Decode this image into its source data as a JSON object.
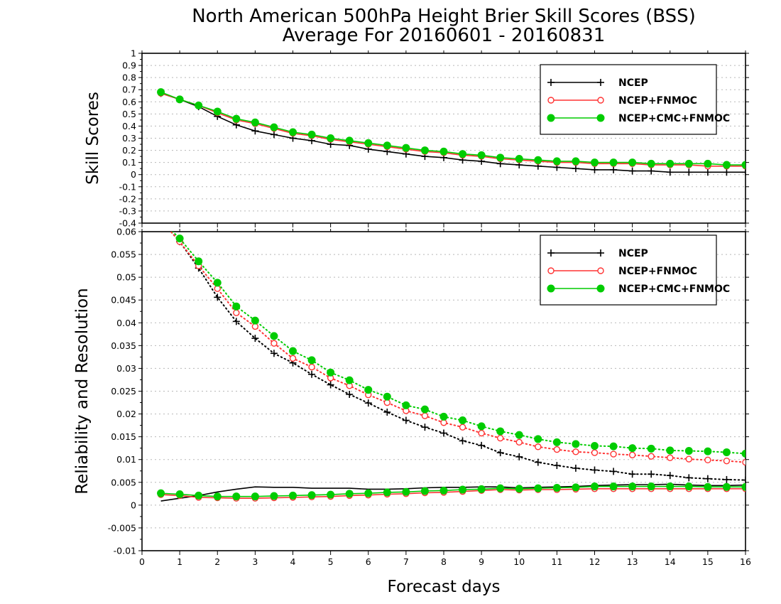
{
  "figure": {
    "title_line1": "North American 500hPa Height Brier Skill Scores (BSS)",
    "title_line2": "Average For 20160601 - 20160831",
    "xlabel": "Forecast days",
    "x_ticks": [
      "0",
      "1",
      "2",
      "3",
      "4",
      "5",
      "6",
      "7",
      "8",
      "9",
      "10",
      "11",
      "12",
      "13",
      "14",
      "15",
      "16"
    ]
  },
  "colors": {
    "NCEP": "#000000",
    "NCEP+FNMOC": "#ff3333",
    "NCEP+CMC+FNMOC": "#00cc00"
  },
  "chart_data": [
    {
      "type": "line",
      "ylabel": "Skill Scores",
      "xlim": [
        0,
        16
      ],
      "ylim": [
        -0.4,
        1
      ],
      "y_ticks": [
        "-0.4",
        "-0.3",
        "-0.2",
        "-0.1",
        "0",
        "0.1",
        "0.2",
        "0.3",
        "0.4",
        "0.5",
        "0.6",
        "0.7",
        "0.8",
        "0.9",
        "1"
      ],
      "grid": true,
      "legend": "top-right",
      "legend_entries": [
        "NCEP",
        "NCEP+FNMOC",
        "NCEP+CMC+FNMOC"
      ],
      "x": [
        0.5,
        1,
        1.5,
        2,
        2.5,
        3,
        3.5,
        4,
        4.5,
        5,
        5.5,
        6,
        6.5,
        7,
        7.5,
        8,
        8.5,
        9,
        9.5,
        10,
        10.5,
        11,
        11.5,
        12,
        12.5,
        13,
        13.5,
        14,
        14.5,
        15,
        15.5,
        16
      ],
      "series": [
        {
          "name": "NCEP",
          "marker": "plus",
          "line": "solid",
          "values": [
            0.67,
            0.62,
            0.56,
            0.48,
            0.41,
            0.36,
            0.33,
            0.3,
            0.28,
            0.25,
            0.24,
            0.21,
            0.19,
            0.17,
            0.15,
            0.14,
            0.12,
            0.11,
            0.09,
            0.08,
            0.07,
            0.06,
            0.05,
            0.04,
            0.04,
            0.03,
            0.03,
            0.02,
            0.02,
            0.02,
            0.02,
            0.02
          ]
        },
        {
          "name": "NCEP+FNMOC",
          "marker": "open-circle",
          "line": "solid",
          "values": [
            0.67,
            0.62,
            0.57,
            0.51,
            0.45,
            0.42,
            0.38,
            0.34,
            0.32,
            0.29,
            0.27,
            0.25,
            0.23,
            0.21,
            0.19,
            0.18,
            0.16,
            0.15,
            0.13,
            0.12,
            0.11,
            0.1,
            0.1,
            0.09,
            0.09,
            0.09,
            0.08,
            0.08,
            0.08,
            0.07,
            0.07,
            0.07
          ]
        },
        {
          "name": "NCEP+CMC+FNMOC",
          "marker": "filled-circle",
          "line": "solid",
          "values": [
            0.68,
            0.62,
            0.57,
            0.52,
            0.46,
            0.43,
            0.39,
            0.35,
            0.33,
            0.3,
            0.28,
            0.26,
            0.24,
            0.22,
            0.2,
            0.19,
            0.17,
            0.16,
            0.14,
            0.13,
            0.12,
            0.11,
            0.11,
            0.1,
            0.1,
            0.1,
            0.09,
            0.09,
            0.09,
            0.09,
            0.08,
            0.08
          ]
        }
      ]
    },
    {
      "type": "line",
      "ylabel": "Reliability and Resolution",
      "xlim": [
        0,
        16
      ],
      "ylim": [
        -0.01,
        0.06
      ],
      "y_ticks": [
        "-0.01",
        "-0.005",
        "0",
        "0.005",
        "0.01",
        "0.015",
        "0.02",
        "0.025",
        "0.03",
        "0.035",
        "0.04",
        "0.045",
        "0.05",
        "0.055",
        "0.06"
      ],
      "grid": true,
      "legend": "top-right",
      "legend_entries": [
        "NCEP",
        "NCEP+FNMOC",
        "NCEP+CMC+FNMOC"
      ],
      "x": [
        0.5,
        1,
        1.5,
        2,
        2.5,
        3,
        3.5,
        4,
        4.5,
        5,
        5.5,
        6,
        6.5,
        7,
        7.5,
        8,
        8.5,
        9,
        9.5,
        10,
        10.5,
        11,
        11.5,
        12,
        12.5,
        13,
        13.5,
        14,
        14.5,
        15,
        15.5,
        16
      ],
      "series": [
        {
          "name": "NCEP",
          "kind": "resolution",
          "marker": "plus",
          "line": "dotted",
          "values": [
            0.0625,
            0.0578,
            0.052,
            0.0456,
            0.0403,
            0.0366,
            0.0333,
            0.0312,
            0.0287,
            0.0264,
            0.0243,
            0.0224,
            0.0204,
            0.0186,
            0.0171,
            0.0158,
            0.0141,
            0.0131,
            0.0115,
            0.0106,
            0.0094,
            0.0087,
            0.0081,
            0.0077,
            0.0074,
            0.0068,
            0.0068,
            0.0065,
            0.006,
            0.0058,
            0.0056,
            0.0055
          ]
        },
        {
          "name": "NCEP+FNMOC",
          "kind": "resolution",
          "marker": "open-circle",
          "line": "dotted",
          "values": [
            0.0625,
            0.0578,
            0.0525,
            0.0475,
            0.0422,
            0.0392,
            0.0355,
            0.0322,
            0.0303,
            0.0279,
            0.0262,
            0.0242,
            0.0225,
            0.0207,
            0.0196,
            0.0181,
            0.0171,
            0.0158,
            0.0147,
            0.0138,
            0.0128,
            0.0122,
            0.0117,
            0.0115,
            0.0112,
            0.011,
            0.0107,
            0.0104,
            0.0101,
            0.0099,
            0.0097,
            0.0094
          ]
        },
        {
          "name": "NCEP+CMC+FNMOC",
          "kind": "resolution",
          "marker": "filled-circle",
          "line": "dotted",
          "values": [
            0.0625,
            0.0585,
            0.0535,
            0.0488,
            0.0436,
            0.0405,
            0.0371,
            0.0338,
            0.0318,
            0.0291,
            0.0274,
            0.0253,
            0.0238,
            0.0219,
            0.021,
            0.0194,
            0.0186,
            0.0173,
            0.0162,
            0.0154,
            0.0145,
            0.0138,
            0.0134,
            0.013,
            0.0129,
            0.0125,
            0.0124,
            0.012,
            0.0119,
            0.0118,
            0.0116,
            0.0113
          ]
        },
        {
          "name": "NCEP",
          "kind": "reliability",
          "marker": "none",
          "line": "solid",
          "values": [
            0.0009,
            0.0015,
            0.0021,
            0.0029,
            0.0035,
            0.004,
            0.0039,
            0.0039,
            0.0037,
            0.0037,
            0.0037,
            0.0035,
            0.0035,
            0.0036,
            0.0038,
            0.0039,
            0.0039,
            0.004,
            0.004,
            0.0038,
            0.0039,
            0.004,
            0.0041,
            0.0043,
            0.0044,
            0.0045,
            0.0045,
            0.0046,
            0.0044,
            0.0043,
            0.0043,
            0.0044
          ]
        },
        {
          "name": "NCEP+FNMOC",
          "kind": "reliability",
          "marker": "open-circle",
          "line": "solid",
          "values": [
            0.0023,
            0.0021,
            0.0017,
            0.0016,
            0.0015,
            0.0015,
            0.0016,
            0.0017,
            0.0018,
            0.0019,
            0.0021,
            0.0022,
            0.0024,
            0.0025,
            0.0027,
            0.0028,
            0.003,
            0.0032,
            0.0034,
            0.0033,
            0.0034,
            0.0034,
            0.0035,
            0.0036,
            0.0036,
            0.0036,
            0.0036,
            0.0036,
            0.0036,
            0.0036,
            0.0036,
            0.0036
          ]
        },
        {
          "name": "NCEP+CMC+FNMOC",
          "kind": "reliability",
          "marker": "filled-circle",
          "line": "solid",
          "values": [
            0.0026,
            0.0024,
            0.0021,
            0.0019,
            0.0019,
            0.0019,
            0.002,
            0.0021,
            0.0022,
            0.0023,
            0.0025,
            0.0026,
            0.0028,
            0.0029,
            0.0031,
            0.0032,
            0.0034,
            0.0035,
            0.0037,
            0.0036,
            0.0037,
            0.0038,
            0.0039,
            0.0041,
            0.0041,
            0.0041,
            0.0041,
            0.0041,
            0.0041,
            0.004,
            0.004,
            0.004
          ]
        }
      ]
    }
  ]
}
